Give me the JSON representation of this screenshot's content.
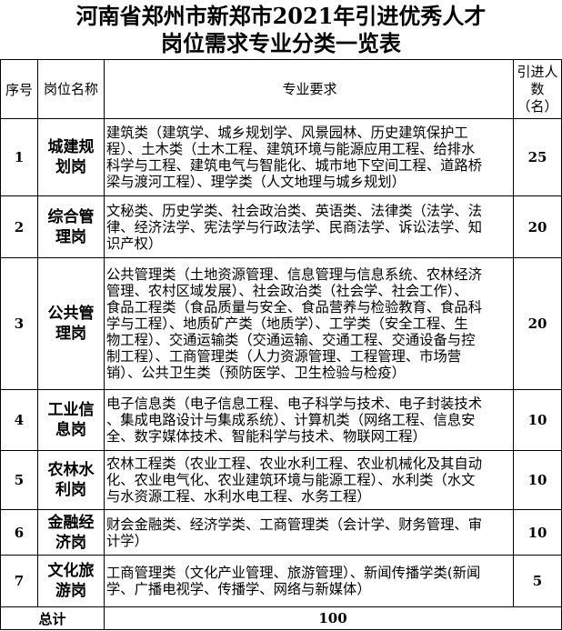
{
  "title": {
    "line1": "河南省郑州市新郑市2021年引进优秀人才",
    "line2": "岗位需求专业分类一览表"
  },
  "header": {
    "no": "序号",
    "position": "岗位名称",
    "requirement": "专业要求",
    "count": [
      "引进人",
      "数",
      "（名）"
    ]
  },
  "rows": [
    {
      "no": "1",
      "position": [
        "城建规",
        "划岗"
      ],
      "count": "25",
      "requirement": [
        "建筑类（建筑学、城乡规划学、风景园林、历史建筑保护工",
        "程）、土木类（土木工程、建筑环境与能源应用工程、给排水",
        "科学与工程、建筑电气与智能化、城市地下空间工程、道路桥",
        "梁与渡河工程）、理学类（人文地理与城乡规划）"
      ]
    },
    {
      "no": "2",
      "position": [
        "综合管",
        "理岗"
      ],
      "count": "20",
      "requirement": [
        "文秘类、历史学类、社会政治类、英语类、法律类（法学、法",
        "律、经济法学、宪法学与行政法学、民商法学、诉讼法学、知",
        "识产权）"
      ]
    },
    {
      "no": "3",
      "position": [
        "公共管",
        "理岗"
      ],
      "count": "20",
      "requirement": [
        "公共管理类（土地资源管理、信息管理与信息系统、农林经济",
        "管理、农村区域发展）、社会政治类（社会学、社会工作）、",
        "食品工程类（食品质量与安全、食品营养与检验教育、食品科",
        "学与工程）、地质矿产类（地质学）、工学类（安全工程、生",
        "物工程）、交通运输类（交通运输、交通工程、交通设备与控",
        "制工程）、工商管理类（人力资源管理、工程管理、市场营",
        "销）、公共卫生类（预防医学、卫生检验与检疫）"
      ]
    },
    {
      "no": "4",
      "position": [
        "工业信",
        "息岗"
      ],
      "count": "10",
      "requirement": [
        "电子信息类（电子信息工程、电子科学与技术、电子封装技术",
        "、集成电路设计与集成系统）、计算机类（网络工程、信息安",
        "全、数字媒体技术、智能科学与技术、物联网工程）"
      ]
    },
    {
      "no": "5",
      "position": [
        "农林水",
        "利岗"
      ],
      "count": "10",
      "requirement": [
        "农林工程类（农业工程、农业水利工程、农业机械化及其自动",
        "化、农业电气化、农业建筑环境与能源工程）、水利类（水文",
        "与水资源工程、水利水电工程、水务工程）"
      ]
    },
    {
      "no": "6",
      "position": [
        "金融经",
        "济岗"
      ],
      "count": "10",
      "requirement": [
        "财会金融类、经济学类、工商管理类（会计学、财务管理、审",
        "计学）"
      ]
    },
    {
      "no": "7",
      "position": [
        "文化旅",
        "游岗"
      ],
      "count": "5",
      "requirement": [
        "工商管理类（文化产业管理、旅游管理）、新闻传播学类(新闻",
        "学、广播电视学、传播学、网络与新媒体）"
      ]
    }
  ],
  "total": {
    "label": "总计",
    "value": "100"
  }
}
